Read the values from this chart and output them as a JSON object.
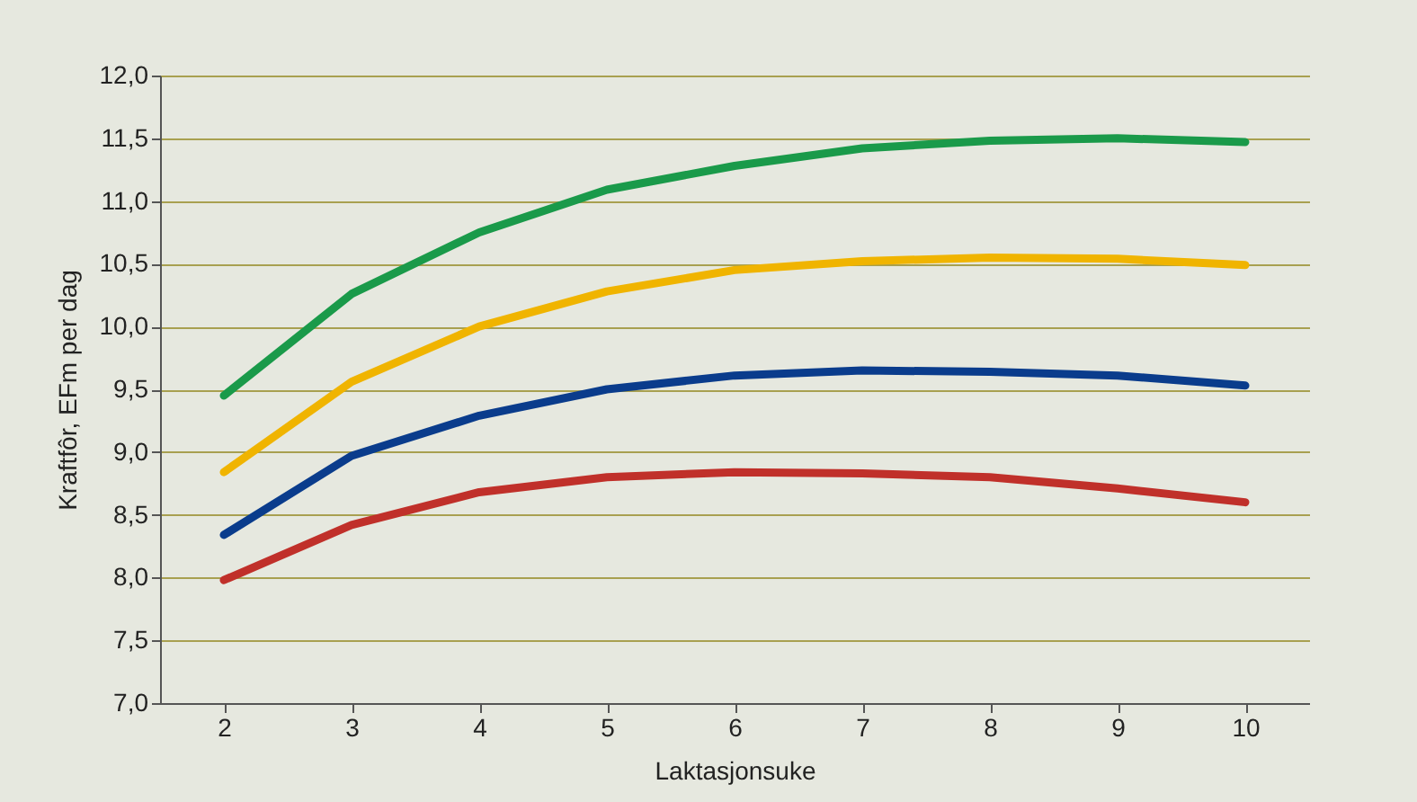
{
  "chart_data": {
    "type": "line",
    "xlabel": "Laktasjonsuke",
    "ylabel": "Kraftfôr, EFm per dag",
    "categories": [
      "2",
      "3",
      "4",
      "5",
      "6",
      "7",
      "8",
      "9",
      "10"
    ],
    "series": [
      {
        "color": "#1a9a4a",
        "values": [
          9.45,
          10.26,
          10.75,
          11.09,
          11.28,
          11.42,
          11.48,
          11.5,
          11.47
        ]
      },
      {
        "color": "#f0b400",
        "values": [
          8.84,
          9.56,
          10.0,
          10.28,
          10.45,
          10.52,
          10.55,
          10.54,
          10.49
        ]
      },
      {
        "color": "#0a3c8c",
        "values": [
          8.34,
          8.97,
          9.29,
          9.5,
          9.61,
          9.65,
          9.64,
          9.61,
          9.53
        ]
      },
      {
        "color": "#c0302a",
        "values": [
          7.98,
          8.42,
          8.68,
          8.8,
          8.84,
          8.83,
          8.8,
          8.71,
          8.6
        ]
      }
    ],
    "ylim": [
      7.0,
      12.0
    ],
    "yticks": [
      {
        "value": 7.0,
        "label": "7,0"
      },
      {
        "value": 7.5,
        "label": "7,5"
      },
      {
        "value": 8.0,
        "label": "8,0"
      },
      {
        "value": 8.5,
        "label": "8,5"
      },
      {
        "value": 9.0,
        "label": "9,0"
      },
      {
        "value": 9.5,
        "label": "9,5"
      },
      {
        "value": 10.0,
        "label": "10,0"
      },
      {
        "value": 10.5,
        "label": "10,5"
      },
      {
        "value": 11.0,
        "label": "11,0"
      },
      {
        "value": 11.5,
        "label": "11,5"
      },
      {
        "value": 12.0,
        "label": "12,0"
      }
    ],
    "grid": "y",
    "legend": false,
    "marker": "none",
    "line_style": "solid"
  }
}
